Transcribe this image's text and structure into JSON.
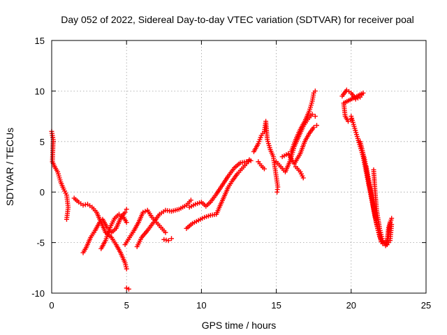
{
  "chart_data": {
    "type": "scatter",
    "title": "Day 052 of 2022, Sidereal Day-to-day VTEC variation (SDTVAR) for receiver poal",
    "xlabel": "GPS time / hours",
    "ylabel": "SDTVAR / TECUs",
    "xlim": [
      0,
      25
    ],
    "ylim": [
      -10,
      15
    ],
    "xticks": [
      0,
      5,
      10,
      15,
      20,
      25
    ],
    "yticks": [
      -10,
      -5,
      0,
      5,
      10,
      15
    ],
    "xtick_labels": [
      "0",
      "5",
      "10",
      "15",
      "20",
      "25"
    ],
    "ytick_labels": [
      "-10",
      "-5",
      "0",
      "5",
      "10",
      "15"
    ],
    "grid": true,
    "marker": "plus",
    "color": "#ff0000",
    "series": [
      {
        "name": "s1",
        "points": [
          [
            0.0,
            6.0
          ],
          [
            0.1,
            5.2
          ],
          [
            0.05,
            3.0
          ],
          [
            0.2,
            2.5
          ],
          [
            0.4,
            2.0
          ],
          [
            0.6,
            1.0
          ],
          [
            0.8,
            0.3
          ],
          [
            1.0,
            -0.3
          ],
          [
            1.1,
            -1.5
          ],
          [
            1.0,
            -2.7
          ]
        ]
      },
      {
        "name": "s2",
        "points": [
          [
            1.5,
            -0.6
          ],
          [
            1.8,
            -1.0
          ],
          [
            2.1,
            -1.3
          ],
          [
            2.4,
            -1.2
          ],
          [
            2.7,
            -1.5
          ],
          [
            3.0,
            -2.0
          ],
          [
            3.3,
            -3.0
          ],
          [
            3.6,
            -4.0
          ],
          [
            4.0,
            -4.5
          ],
          [
            4.3,
            -5.2
          ],
          [
            4.6,
            -6.0
          ],
          [
            4.9,
            -7.0
          ],
          [
            5.0,
            -7.6
          ]
        ]
      },
      {
        "name": "s3",
        "points": [
          [
            5.0,
            -9.5
          ],
          [
            5.15,
            -9.6
          ]
        ]
      },
      {
        "name": "s4",
        "points": [
          [
            2.1,
            -6.0
          ],
          [
            2.3,
            -5.5
          ],
          [
            2.6,
            -4.5
          ],
          [
            2.9,
            -3.8
          ],
          [
            3.2,
            -3.0
          ],
          [
            3.4,
            -2.7
          ],
          [
            3.7,
            -3.5
          ],
          [
            4.0,
            -4.0
          ],
          [
            4.3,
            -3.6
          ],
          [
            4.6,
            -2.6
          ],
          [
            4.9,
            -2.0
          ],
          [
            5.0,
            -1.7
          ]
        ]
      },
      {
        "name": "s5",
        "points": [
          [
            3.3,
            -5.6
          ],
          [
            3.6,
            -4.8
          ],
          [
            3.9,
            -3.5
          ],
          [
            4.2,
            -2.6
          ],
          [
            4.5,
            -2.2
          ],
          [
            4.8,
            -2.5
          ],
          [
            5.0,
            -3.0
          ]
        ]
      },
      {
        "name": "s6",
        "points": [
          [
            4.9,
            -5.2
          ],
          [
            5.2,
            -4.5
          ],
          [
            5.5,
            -3.8
          ],
          [
            5.8,
            -3.0
          ],
          [
            6.1,
            -2.0
          ],
          [
            6.4,
            -1.8
          ],
          [
            6.7,
            -2.5
          ],
          [
            7.0,
            -3.0
          ],
          [
            7.3,
            -3.5
          ],
          [
            7.6,
            -4.0
          ]
        ]
      },
      {
        "name": "s7",
        "points": [
          [
            5.7,
            -5.4
          ],
          [
            6.0,
            -4.5
          ],
          [
            6.4,
            -3.8
          ],
          [
            6.8,
            -3.0
          ],
          [
            7.2,
            -2.2
          ],
          [
            7.6,
            -1.8
          ],
          [
            8.0,
            -1.9
          ],
          [
            8.5,
            -1.7
          ],
          [
            9.0,
            -1.3
          ],
          [
            9.3,
            -0.8
          ]
        ]
      },
      {
        "name": "s8",
        "points": [
          [
            7.5,
            -4.7
          ],
          [
            7.8,
            -4.8
          ],
          [
            8.0,
            -4.6
          ]
        ]
      },
      {
        "name": "s9",
        "points": [
          [
            9.0,
            -3.6
          ],
          [
            9.4,
            -3.1
          ],
          [
            9.8,
            -2.8
          ],
          [
            10.2,
            -2.5
          ],
          [
            10.6,
            -2.3
          ],
          [
            11.0,
            -2.2
          ],
          [
            11.2,
            -1.5
          ],
          [
            11.5,
            -0.5
          ],
          [
            11.8,
            0.5
          ],
          [
            12.1,
            1.2
          ],
          [
            12.4,
            1.8
          ],
          [
            12.7,
            2.3
          ],
          [
            13.0,
            2.8
          ],
          [
            13.2,
            3.2
          ]
        ]
      },
      {
        "name": "s10",
        "points": [
          [
            9.2,
            -1.5
          ],
          [
            9.6,
            -1.2
          ],
          [
            10.0,
            -1.0
          ],
          [
            10.3,
            -1.4
          ],
          [
            10.6,
            -1.0
          ],
          [
            11.0,
            -0.2
          ],
          [
            11.4,
            0.7
          ],
          [
            11.8,
            1.6
          ],
          [
            12.2,
            2.4
          ],
          [
            12.6,
            2.9
          ],
          [
            13.0,
            3.0
          ],
          [
            13.3,
            3.1
          ]
        ]
      },
      {
        "name": "s11",
        "points": [
          [
            13.5,
            4.0
          ],
          [
            13.8,
            4.8
          ],
          [
            14.0,
            5.6
          ],
          [
            14.2,
            6.0
          ],
          [
            14.3,
            7.0
          ],
          [
            14.4,
            5.2
          ],
          [
            14.6,
            4.2
          ],
          [
            14.8,
            3.5
          ],
          [
            14.9,
            2.5
          ],
          [
            15.0,
            1.5
          ],
          [
            15.1,
            0.5
          ],
          [
            15.05,
            0.0
          ]
        ]
      },
      {
        "name": "s12",
        "points": [
          [
            13.8,
            3.0
          ],
          [
            14.0,
            2.6
          ],
          [
            14.2,
            2.3
          ]
        ]
      },
      {
        "name": "s13",
        "points": [
          [
            15.0,
            3.0
          ],
          [
            15.3,
            2.5
          ],
          [
            15.6,
            2.0
          ],
          [
            15.9,
            3.0
          ],
          [
            16.2,
            4.5
          ],
          [
            16.5,
            5.5
          ],
          [
            16.8,
            6.5
          ],
          [
            17.1,
            7.2
          ],
          [
            17.4,
            7.7
          ],
          [
            17.6,
            7.5
          ]
        ]
      },
      {
        "name": "s14",
        "points": [
          [
            15.4,
            3.5
          ],
          [
            15.8,
            3.8
          ],
          [
            16.2,
            2.8
          ],
          [
            16.6,
            3.8
          ],
          [
            16.9,
            5.0
          ],
          [
            17.2,
            5.8
          ],
          [
            17.5,
            6.4
          ],
          [
            17.7,
            6.6
          ]
        ]
      },
      {
        "name": "s15",
        "points": [
          [
            16.0,
            4.0
          ],
          [
            16.3,
            5.2
          ],
          [
            16.6,
            6.2
          ],
          [
            16.9,
            7.0
          ],
          [
            17.2,
            8.0
          ],
          [
            17.4,
            9.0
          ],
          [
            17.5,
            9.8
          ],
          [
            17.6,
            10.0
          ]
        ]
      },
      {
        "name": "s16",
        "points": [
          [
            16.3,
            2.5
          ],
          [
            16.6,
            2.0
          ],
          [
            16.8,
            1.4
          ]
        ]
      },
      {
        "name": "s17",
        "points": [
          [
            19.4,
            9.5
          ],
          [
            19.7,
            10.1
          ],
          [
            20.0,
            9.8
          ],
          [
            20.3,
            9.2
          ],
          [
            20.6,
            9.4
          ],
          [
            20.8,
            9.8
          ],
          [
            19.5,
            8.8
          ],
          [
            19.6,
            7.5
          ],
          [
            19.8,
            7.0
          ],
          [
            20.0,
            7.2
          ]
        ]
      },
      {
        "name": "s18",
        "points": [
          [
            20.0,
            7.5
          ],
          [
            20.2,
            6.5
          ],
          [
            20.4,
            5.5
          ],
          [
            20.6,
            4.5
          ],
          [
            20.8,
            3.5
          ],
          [
            21.0,
            2.0
          ],
          [
            21.2,
            0.5
          ],
          [
            21.4,
            -1.0
          ],
          [
            21.6,
            -2.5
          ],
          [
            21.8,
            -3.8
          ],
          [
            22.0,
            -4.6
          ],
          [
            22.2,
            -5.0
          ],
          [
            22.4,
            -5.2
          ],
          [
            22.6,
            -4.8
          ],
          [
            22.7,
            -3.2
          ]
        ]
      },
      {
        "name": "s19",
        "points": [
          [
            20.6,
            5.0
          ],
          [
            20.9,
            3.2
          ],
          [
            21.1,
            1.7
          ],
          [
            21.3,
            0.2
          ],
          [
            21.5,
            -1.6
          ],
          [
            21.7,
            -3.2
          ],
          [
            21.9,
            -4.4
          ],
          [
            22.1,
            -5.1
          ],
          [
            22.3,
            -5.3
          ],
          [
            22.5,
            -4.4
          ],
          [
            22.6,
            -3.0
          ]
        ]
      },
      {
        "name": "s20",
        "points": [
          [
            21.0,
            2.5
          ],
          [
            21.2,
            0.8
          ],
          [
            21.4,
            -0.8
          ],
          [
            21.6,
            -2.4
          ],
          [
            21.8,
            -3.6
          ],
          [
            22.0,
            -4.9
          ],
          [
            22.2,
            -5.1
          ],
          [
            22.4,
            -4.8
          ],
          [
            22.5,
            -3.5
          ],
          [
            22.7,
            -2.6
          ]
        ]
      },
      {
        "name": "s21",
        "points": [
          [
            21.5,
            2.2
          ],
          [
            21.6,
            0.0
          ],
          [
            21.7,
            -1.8
          ],
          [
            21.9,
            -3.6
          ],
          [
            22.1,
            -4.8
          ]
        ]
      }
    ]
  }
}
